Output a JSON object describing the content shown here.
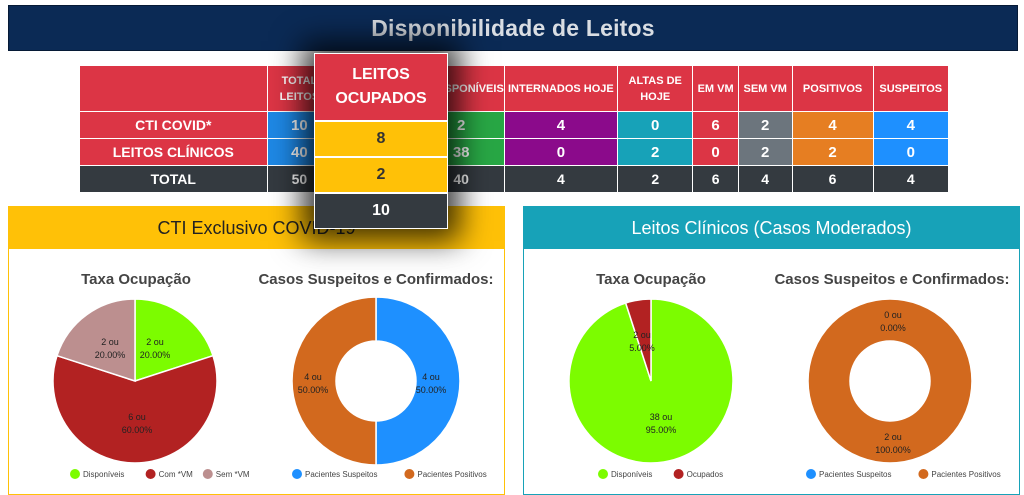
{
  "title": "Disponibilidade de Leitos",
  "table": {
    "headers": [
      "",
      "TOTAL LEITOS",
      "LEITOS OCUPADOS",
      "DISPONÍVEIS",
      "INTERNADOS HOJE",
      "ALTAS DE HOJE",
      "EM VM",
      "SEM VM",
      "POSITIVOS",
      "SUSPEITOS"
    ],
    "header_visible": [
      "",
      "TOTAL LEITOS",
      "",
      "SPONÍVEIS",
      "INTERNADOS HOJE",
      "ALTAS DE HOJE",
      "EM VM",
      "SEM VM",
      "POSITIVOS",
      "SUSPEITOS"
    ],
    "rows": [
      {
        "label": "CTI COVID*",
        "values": [
          "10",
          "8",
          "2",
          "4",
          "0",
          "6",
          "2",
          "4",
          "4"
        ]
      },
      {
        "label": "LEITOS CLÍNICOS",
        "values": [
          "40",
          "2",
          "38",
          "0",
          "2",
          "0",
          "2",
          "2",
          "0"
        ]
      },
      {
        "label": "TOTAL",
        "values": [
          "50",
          "10",
          "40",
          "4",
          "2",
          "6",
          "4",
          "6",
          "4"
        ]
      }
    ]
  },
  "popup": {
    "header": "LEITOS OCUPADOS",
    "values": [
      "8",
      "2",
      "10"
    ]
  },
  "panels": [
    {
      "title": "CTI Exclusivo COVID-19",
      "title_visible": "CTI Exclusivo COVID-19"
    },
    {
      "title": "Leitos Clínicos (Casos Moderados)"
    }
  ],
  "chart_data": [
    {
      "type": "pie",
      "title": "Taxa Ocupação",
      "categories": [
        "Disponíveis",
        "Com *VM",
        "Sem *VM"
      ],
      "values": [
        2,
        6,
        2
      ],
      "labels": [
        [
          "2 ou",
          "20.00%"
        ],
        [
          "6 ou",
          "60.00%"
        ],
        [
          "2 ou",
          "20.00%"
        ]
      ],
      "colors": [
        "#7cfc00",
        "#b22222",
        "#bc8f8f"
      ],
      "legend": "bottom"
    },
    {
      "type": "pie",
      "subtype": "doughnut",
      "title": "Casos Suspeitos e Confirmados:",
      "categories": [
        "Pacientes Suspeitos",
        "Pacientes Positivos"
      ],
      "values": [
        4,
        4
      ],
      "labels": [
        [
          "4 ou",
          "50.00%"
        ],
        [
          "4 ou",
          "50.00%"
        ]
      ],
      "colors": [
        "#1e90ff",
        "#d2691e"
      ],
      "legend": "bottom"
    },
    {
      "type": "pie",
      "title": "Taxa Ocupação",
      "categories": [
        "Disponíveis",
        "Ocupados"
      ],
      "values": [
        38,
        2
      ],
      "labels": [
        [
          "38 ou",
          "95.00%"
        ],
        [
          "2 ou",
          "5.00%"
        ]
      ],
      "colors": [
        "#7cfc00",
        "#b22222"
      ],
      "legend": "bottom"
    },
    {
      "type": "pie",
      "subtype": "doughnut",
      "title": "Casos Suspeitos e Confirmados:",
      "categories": [
        "Pacientes Suspeitos",
        "Pacientes Positivos"
      ],
      "values": [
        0,
        2
      ],
      "labels": [
        [
          "0 ou",
          "0.00%"
        ],
        [
          "2 ou",
          "100.00%"
        ]
      ],
      "colors": [
        "#1e90ff",
        "#d2691e"
      ],
      "legend": "bottom"
    }
  ]
}
